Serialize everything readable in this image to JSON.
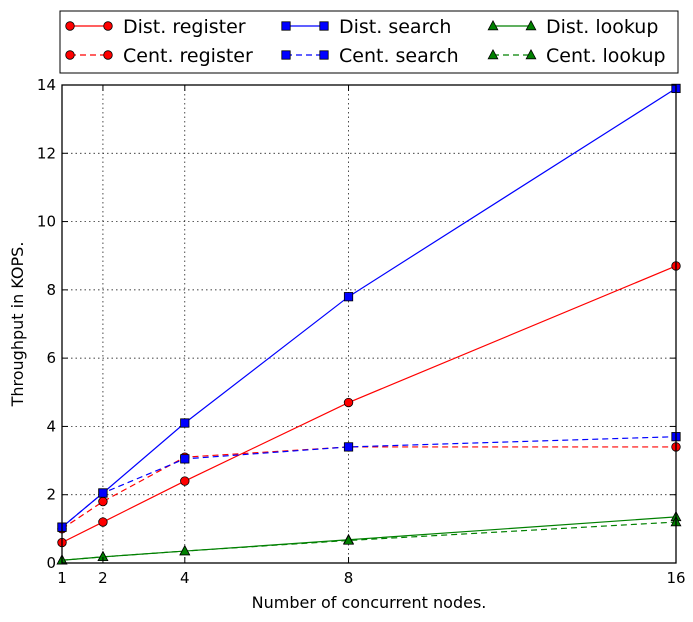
{
  "chart_data": {
    "type": "line",
    "xlabel": "Number of concurrent nodes.",
    "ylabel": "Throughput in KOPS.",
    "xlim": [
      1,
      16
    ],
    "ylim": [
      0,
      14
    ],
    "xticks": [
      1,
      2,
      4,
      8,
      16
    ],
    "xtick_labels": [
      "1",
      "2",
      "4",
      "8",
      "16"
    ],
    "yticks": [
      0,
      2,
      4,
      6,
      8,
      10,
      12,
      14
    ],
    "ytick_labels": [
      "0",
      "2",
      "4",
      "6",
      "8",
      "10",
      "12",
      "14"
    ],
    "grid": true,
    "legend_position": "top",
    "legend_columns": 3,
    "x": [
      1,
      2,
      4,
      8,
      16
    ],
    "series": [
      {
        "name": "Dist. register",
        "values": [
          0.6,
          1.2,
          2.4,
          4.7,
          8.7
        ],
        "color": "#ff0000",
        "linestyle": "solid",
        "marker": "circle"
      },
      {
        "name": "Cent. register",
        "values": [
          1.0,
          1.8,
          3.1,
          3.4,
          3.4
        ],
        "color": "#ff0000",
        "linestyle": "dashed",
        "marker": "circle"
      },
      {
        "name": "Dist. search",
        "values": [
          1.05,
          2.05,
          4.1,
          7.8,
          13.9
        ],
        "color": "#0000ff",
        "linestyle": "solid",
        "marker": "square"
      },
      {
        "name": "Cent. search",
        "values": [
          1.05,
          2.05,
          3.05,
          3.4,
          3.7
        ],
        "color": "#0000ff",
        "linestyle": "dashed",
        "marker": "square"
      },
      {
        "name": "Dist. lookup",
        "values": [
          0.08,
          0.18,
          0.35,
          0.68,
          1.35
        ],
        "color": "#008000",
        "linestyle": "solid",
        "marker": "triangle"
      },
      {
        "name": "Cent. lookup",
        "values": [
          0.08,
          0.18,
          0.35,
          0.66,
          1.2
        ],
        "color": "#008000",
        "linestyle": "dashed",
        "marker": "triangle"
      }
    ]
  }
}
